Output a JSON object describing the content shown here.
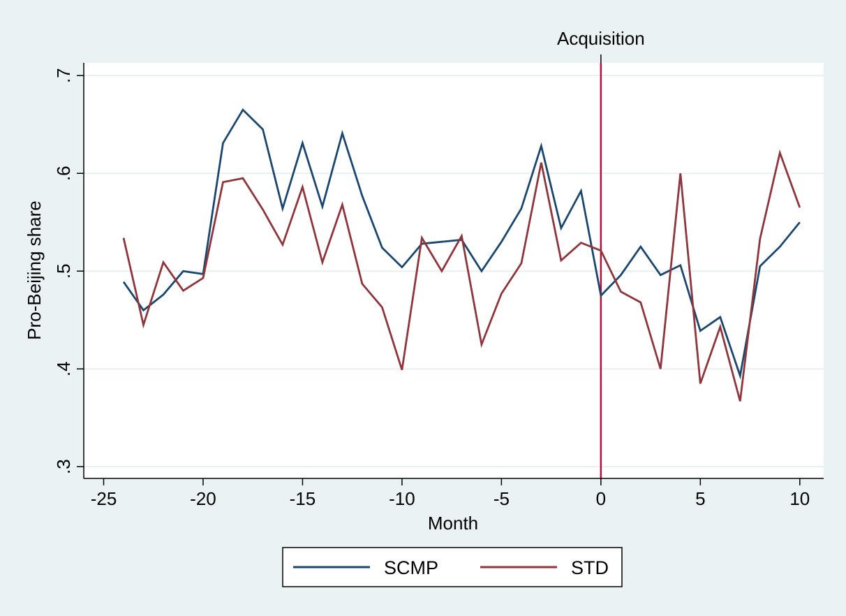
{
  "chart_data": {
    "type": "line",
    "title": "",
    "xlabel": "Month",
    "ylabel": "Pro-Beijing share",
    "xlim": [
      -26,
      11.2
    ],
    "ylim": [
      0.288,
      0.713
    ],
    "x_ticks": [
      -25,
      -20,
      -15,
      -10,
      -5,
      0,
      5,
      10
    ],
    "x_tick_labels": [
      "-25",
      "-20",
      "-15",
      "-10",
      "-5",
      "0",
      "5",
      "10"
    ],
    "y_ticks": [
      0.3,
      0.4,
      0.5,
      0.6,
      0.7
    ],
    "y_tick_labels": [
      ".3",
      ".4",
      ".5",
      ".6",
      ".7"
    ],
    "grid": "horizontal",
    "legend_position": "bottom",
    "x": [
      -24,
      -23,
      -22,
      -21,
      -20,
      -19,
      -18,
      -17,
      -16,
      -15,
      -14,
      -13,
      -12,
      -11,
      -10,
      -9,
      -8,
      -7,
      -6,
      -5,
      -4,
      -3,
      -2,
      -1,
      0,
      1,
      2,
      3,
      4,
      5,
      6,
      7,
      8,
      9,
      10
    ],
    "series": [
      {
        "name": "SCMP",
        "color": "#1a476f",
        "values": [
          0.489,
          0.46,
          0.476,
          0.5,
          0.497,
          0.631,
          0.665,
          0.645,
          0.564,
          0.631,
          0.566,
          0.641,
          0.577,
          0.524,
          0.504,
          0.528,
          0.53,
          0.532,
          0.5,
          0.53,
          0.564,
          0.628,
          0.544,
          0.582,
          0.475,
          0.496,
          0.525,
          0.496,
          0.506,
          0.439,
          0.453,
          0.393,
          0.505,
          0.525,
          0.55
        ]
      },
      {
        "name": "STD",
        "color": "#90353b",
        "values": [
          0.534,
          0.445,
          0.509,
          0.48,
          0.493,
          0.591,
          0.595,
          0.563,
          0.527,
          0.586,
          0.509,
          0.568,
          0.487,
          0.463,
          0.399,
          0.534,
          0.5,
          0.536,
          0.425,
          0.477,
          0.508,
          0.611,
          0.511,
          0.529,
          0.521,
          0.479,
          0.468,
          0.4,
          0.6,
          0.385,
          0.443,
          0.367,
          0.533,
          0.621,
          0.565
        ]
      }
    ],
    "annotations": [
      {
        "x": 0,
        "label": "Acquisition",
        "color": "#b0103a"
      }
    ]
  }
}
